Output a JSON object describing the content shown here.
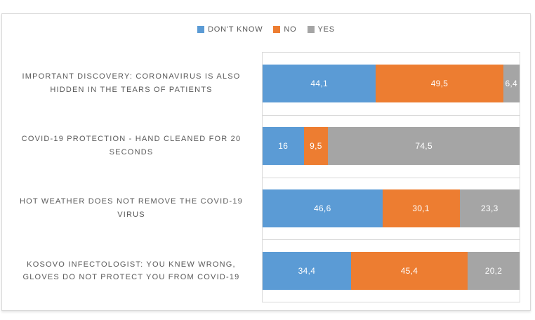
{
  "colors": {
    "dont_know": "#5B9BD5",
    "no": "#ED7D31",
    "yes": "#A5A5A5",
    "frame_border": "#D9D9D9",
    "gridline": "#D9D9D9",
    "label_text": "#595959",
    "value_text": "#FFFFFF"
  },
  "legend": {
    "position": "top-center",
    "items": [
      {
        "label": "DON'T KNOW",
        "color": "#5B9BD5"
      },
      {
        "label": "NO",
        "color": "#ED7D31"
      },
      {
        "label": "YES",
        "color": "#A5A5A5"
      }
    ]
  },
  "chart_data": {
    "type": "bar",
    "orientation": "horizontal",
    "stacked": true,
    "percent_stacked": true,
    "title": "",
    "xlabel": "",
    "ylabel": "",
    "xlim": [
      0,
      100
    ],
    "grid": "category-separators",
    "legend_position": "top",
    "categories": [
      "IMPORTANT DISCOVERY: CORONAVIRUS IS ALSO HIDDEN IN THE TEARS OF PATIENTS",
      "COVID-19 PROTECTION - HAND CLEANED FOR 20 SECONDS",
      "HOT WEATHER DOES NOT REMOVE THE COVID-19 VIRUS",
      "KOSOVO INFECTOLOGIST: YOU KNEW WRONG, GLOVES DO NOT PROTECT YOU FROM COVID-19"
    ],
    "series": [
      {
        "name": "DON'T KNOW",
        "color": "#5B9BD5",
        "values": [
          44.1,
          16,
          46.6,
          34.4
        ]
      },
      {
        "name": "NO",
        "color": "#ED7D31",
        "values": [
          49.5,
          9.5,
          30.1,
          45.4
        ]
      },
      {
        "name": "YES",
        "color": "#A5A5A5",
        "values": [
          6.4,
          74.5,
          23.3,
          20.2
        ]
      }
    ],
    "value_labels": [
      [
        "44,1",
        "49,5",
        "6,4"
      ],
      [
        "16",
        "9,5",
        "74,5"
      ],
      [
        "46,6",
        "30,1",
        "23,3"
      ],
      [
        "34,4",
        "45,4",
        "20,2"
      ]
    ]
  }
}
